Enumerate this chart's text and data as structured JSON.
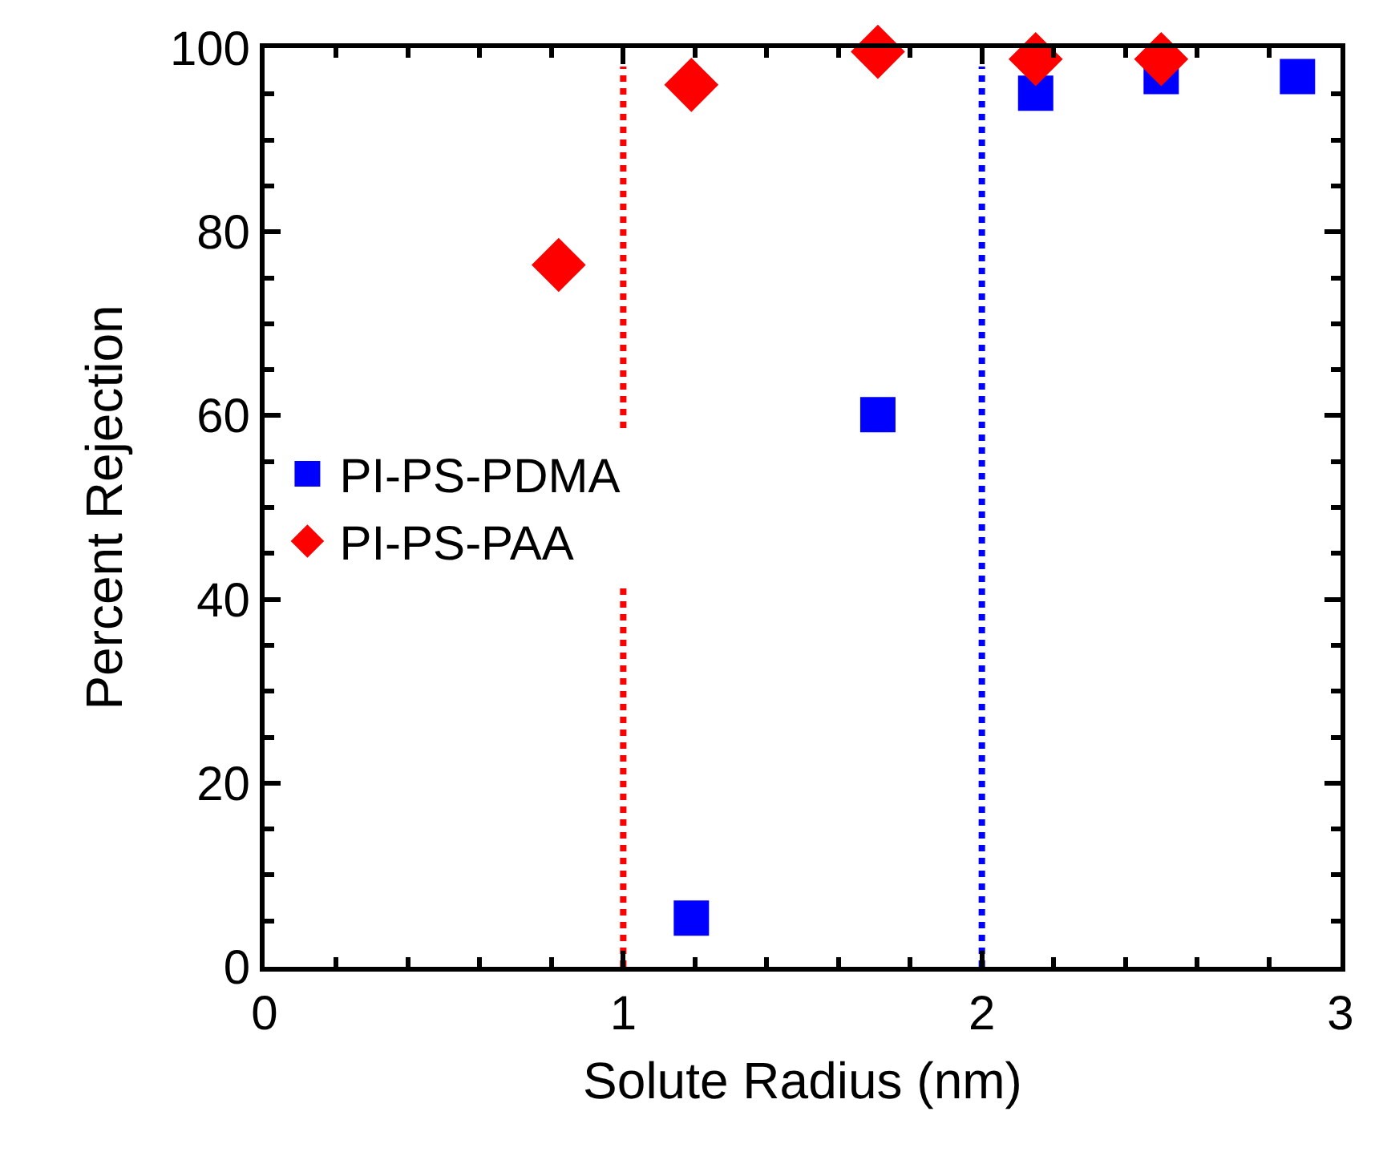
{
  "chart_data": {
    "type": "scatter",
    "xlabel": "Solute Radius (nm)",
    "ylabel": "Percent Rejection",
    "xlim": [
      0,
      3
    ],
    "xticks": [
      0,
      1,
      2,
      3
    ],
    "ylim": [
      0,
      100
    ],
    "yticks": [
      0,
      20,
      40,
      60,
      80,
      100
    ],
    "legend": "left",
    "series": [
      {
        "name": "PI-PS-PDMA",
        "color": "#0000ff",
        "marker": "square",
        "x": [
          1.19,
          1.71,
          2.15,
          2.5,
          2.88
        ],
        "values": [
          5.3,
          60.1,
          95.1,
          96.9,
          96.9
        ]
      },
      {
        "name": "PI-PS-PAA",
        "color": "#ff0000",
        "marker": "diamond",
        "x": [
          0.82,
          1.19,
          1.71,
          2.15,
          2.5
        ],
        "values": [
          76.4,
          96.0,
          99.6,
          98.8,
          98.8
        ]
      }
    ],
    "ref_lines": [
      {
        "axis": "x",
        "value": 1,
        "color": "#ff0000",
        "line_style": "dotted"
      },
      {
        "axis": "x",
        "value": 2,
        "color": "#0000ff",
        "line_style": "dotted"
      }
    ]
  }
}
